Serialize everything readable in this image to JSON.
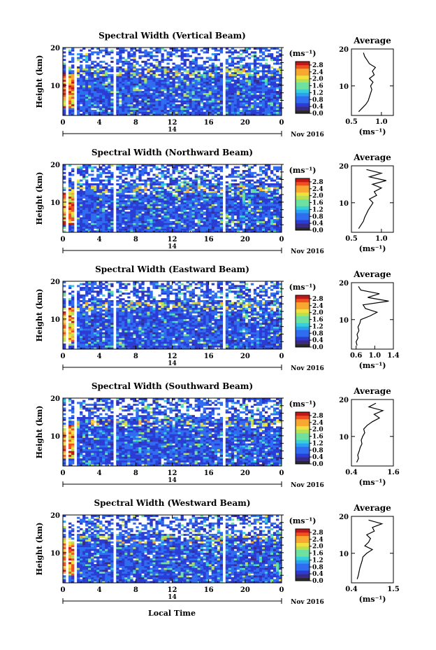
{
  "figure": {
    "xlabel": "Local Time",
    "date_label": "Nov 2016",
    "day_label": "14",
    "ylabel": "Height (km)",
    "colorbar_unit": "(ms⁻¹)",
    "avg_title": "Average",
    "avg_xlabel": "(ms⁻¹)"
  },
  "colors": {
    "colormap": [
      "#3a2a86",
      "#2b3cd4",
      "#2f6cf0",
      "#2aa0f0",
      "#38d0d8",
      "#6ee0a0",
      "#b8e050",
      "#f0e040",
      "#f8a830",
      "#f05020",
      "#c01818"
    ],
    "colorbar_bottom": "#2a2a2a"
  },
  "chart_data": [
    {
      "type": "heatmap",
      "title": "Spectral Width (Vertical Beam)",
      "xlabel": "",
      "ylabel": "Height (km)",
      "xlim": [
        0,
        24
      ],
      "ylim": [
        2,
        20
      ],
      "xticks": [
        "0",
        "4",
        "8",
        "12",
        "16",
        "20",
        "0"
      ],
      "yticks": [
        "10",
        "20"
      ],
      "colorbar_ticks": [
        "0.0",
        "0.4",
        "0.8",
        "1.2",
        "1.6",
        "2.0",
        "2.4",
        "2.8"
      ],
      "colorbar_range": [
        0,
        3.0
      ],
      "data_gaps_hours": [
        [
          0.4,
          0.5
        ],
        [
          1.2,
          1.5
        ],
        [
          5.6,
          5.8
        ],
        [
          17.6,
          17.8
        ]
      ],
      "average": {
        "title": "Average",
        "xlim": [
          0.5,
          1.2
        ],
        "xticks": [
          "0.5",
          "1.0"
        ],
        "xlabel": "(ms⁻¹)",
        "ylim": [
          2,
          20
        ],
        "yticks": [
          "10",
          "20"
        ],
        "height_km": [
          3,
          4,
          5,
          6,
          7,
          8,
          9,
          10,
          11,
          12,
          13,
          14,
          15,
          16,
          17,
          18,
          19
        ],
        "width_ms": [
          0.62,
          0.68,
          0.74,
          0.78,
          0.8,
          0.82,
          0.84,
          0.82,
          0.86,
          0.8,
          0.88,
          0.85,
          0.9,
          0.8,
          0.76,
          0.72,
          0.7
        ]
      }
    },
    {
      "type": "heatmap",
      "title": "Spectral Width (Northward Beam)",
      "xlabel": "",
      "ylabel": "Height (km)",
      "xlim": [
        0,
        24
      ],
      "ylim": [
        2,
        20
      ],
      "xticks": [
        "0",
        "4",
        "8",
        "12",
        "16",
        "20",
        "0"
      ],
      "yticks": [
        "10",
        "20"
      ],
      "colorbar_ticks": [
        "0.0",
        "0.4",
        "0.8",
        "1.2",
        "1.6",
        "2.0",
        "2.4",
        "2.8"
      ],
      "colorbar_range": [
        0,
        3.0
      ],
      "data_gaps_hours": [
        [
          0.4,
          0.5
        ],
        [
          1.2,
          1.5
        ],
        [
          5.6,
          5.8
        ],
        [
          17.6,
          17.8
        ]
      ],
      "average": {
        "title": "Average",
        "xlim": [
          0.5,
          1.2
        ],
        "xticks": [
          "0.5",
          "1.0"
        ],
        "xlabel": "(ms⁻¹)",
        "ylim": [
          2,
          20
        ],
        "yticks": [
          "10",
          "20"
        ],
        "height_km": [
          3,
          4,
          5,
          6,
          7,
          8,
          9,
          10,
          11,
          12,
          13,
          14,
          15,
          16,
          17,
          18,
          19
        ],
        "width_ms": [
          0.62,
          0.66,
          0.7,
          0.72,
          0.75,
          0.78,
          0.82,
          0.86,
          0.8,
          0.92,
          0.88,
          1.0,
          0.85,
          1.08,
          0.8,
          1.0,
          0.75
        ]
      }
    },
    {
      "type": "heatmap",
      "title": "Spectral Width (Eastward Beam)",
      "xlabel": "",
      "ylabel": "Height (km)",
      "xlim": [
        0,
        24
      ],
      "ylim": [
        2,
        20
      ],
      "xticks": [
        "0",
        "4",
        "8",
        "12",
        "16",
        "20",
        "0"
      ],
      "yticks": [
        "10",
        "20"
      ],
      "colorbar_ticks": [
        "0.0",
        "0.4",
        "0.8",
        "1.2",
        "1.6",
        "2.0",
        "2.4",
        "2.8"
      ],
      "colorbar_range": [
        0,
        3.0
      ],
      "data_gaps_hours": [
        [
          0.4,
          0.5
        ],
        [
          1.2,
          1.5
        ],
        [
          5.6,
          5.8
        ],
        [
          17.6,
          17.8
        ]
      ],
      "average": {
        "title": "Average",
        "xlim": [
          0.5,
          1.4
        ],
        "xticks": [
          "0.6",
          "1.0",
          "1.4"
        ],
        "xlabel": "(ms⁻¹)",
        "ylim": [
          2,
          20
        ],
        "yticks": [
          "10",
          "20"
        ],
        "height_km": [
          3,
          4,
          5,
          6,
          7,
          8,
          9,
          10,
          11,
          12,
          13,
          14,
          15,
          16,
          17,
          18,
          19
        ],
        "width_ms": [
          0.62,
          0.6,
          0.64,
          0.62,
          0.66,
          0.64,
          0.68,
          0.7,
          0.9,
          1.05,
          0.8,
          0.75,
          1.3,
          0.85,
          1.1,
          0.7,
          0.65
        ]
      }
    },
    {
      "type": "heatmap",
      "title": "Spectral Width (Southward Beam)",
      "xlabel": "",
      "ylabel": "Height (km)",
      "xlim": [
        0,
        24
      ],
      "ylim": [
        2,
        20
      ],
      "xticks": [
        "0",
        "4",
        "8",
        "12",
        "16",
        "20",
        "0"
      ],
      "yticks": [
        "10",
        "20"
      ],
      "colorbar_ticks": [
        "0.0",
        "0.4",
        "0.8",
        "1.2",
        "1.6",
        "2.0",
        "2.4",
        "2.8"
      ],
      "colorbar_range": [
        0,
        3.0
      ],
      "data_gaps_hours": [
        [
          0.4,
          0.5
        ],
        [
          1.2,
          1.5
        ],
        [
          5.6,
          5.8
        ],
        [
          17.6,
          17.8
        ]
      ],
      "average": {
        "title": "Average",
        "xlim": [
          0.4,
          1.6
        ],
        "xticks": [
          "0.4",
          "1.6"
        ],
        "xlabel": "(ms⁻¹)",
        "ylim": [
          2,
          20
        ],
        "yticks": [
          "10",
          "20"
        ],
        "height_km": [
          3,
          4,
          5,
          6,
          7,
          8,
          9,
          10,
          11,
          12,
          13,
          14,
          15,
          16,
          17,
          18,
          19
        ],
        "width_ms": [
          0.55,
          0.6,
          0.58,
          0.62,
          0.65,
          0.7,
          0.68,
          0.72,
          0.78,
          0.75,
          0.85,
          1.0,
          1.2,
          1.05,
          1.3,
          0.9,
          1.1
        ]
      }
    },
    {
      "type": "heatmap",
      "title": "Spectral Width (Westward Beam)",
      "xlabel": "Local Time",
      "ylabel": "Height (km)",
      "xlim": [
        0,
        24
      ],
      "ylim": [
        2,
        20
      ],
      "xticks": [
        "0",
        "4",
        "8",
        "12",
        "16",
        "20",
        "0"
      ],
      "yticks": [
        "10",
        "20"
      ],
      "colorbar_ticks": [
        "0.0",
        "0.4",
        "0.8",
        "1.2",
        "1.6",
        "2.0",
        "2.4",
        "2.8"
      ],
      "colorbar_range": [
        0,
        3.0
      ],
      "data_gaps_hours": [
        [
          0.4,
          0.5
        ],
        [
          1.2,
          1.5
        ],
        [
          5.6,
          5.8
        ],
        [
          17.6,
          17.8
        ]
      ],
      "average": {
        "title": "Average",
        "xlim": [
          0.4,
          1.5
        ],
        "xticks": [
          "0.4",
          "1.5"
        ],
        "xlabel": "(ms⁻¹)",
        "ylim": [
          2,
          20
        ],
        "yticks": [
          "10",
          "20"
        ],
        "height_km": [
          3,
          4,
          5,
          6,
          7,
          8,
          9,
          10,
          11,
          12,
          13,
          14,
          15,
          16,
          17,
          18,
          19
        ],
        "width_ms": [
          0.55,
          0.58,
          0.6,
          0.62,
          0.65,
          0.68,
          0.7,
          0.8,
          0.95,
          0.75,
          0.85,
          0.9,
          0.8,
          1.0,
          0.95,
          1.2,
          0.85
        ]
      }
    }
  ]
}
